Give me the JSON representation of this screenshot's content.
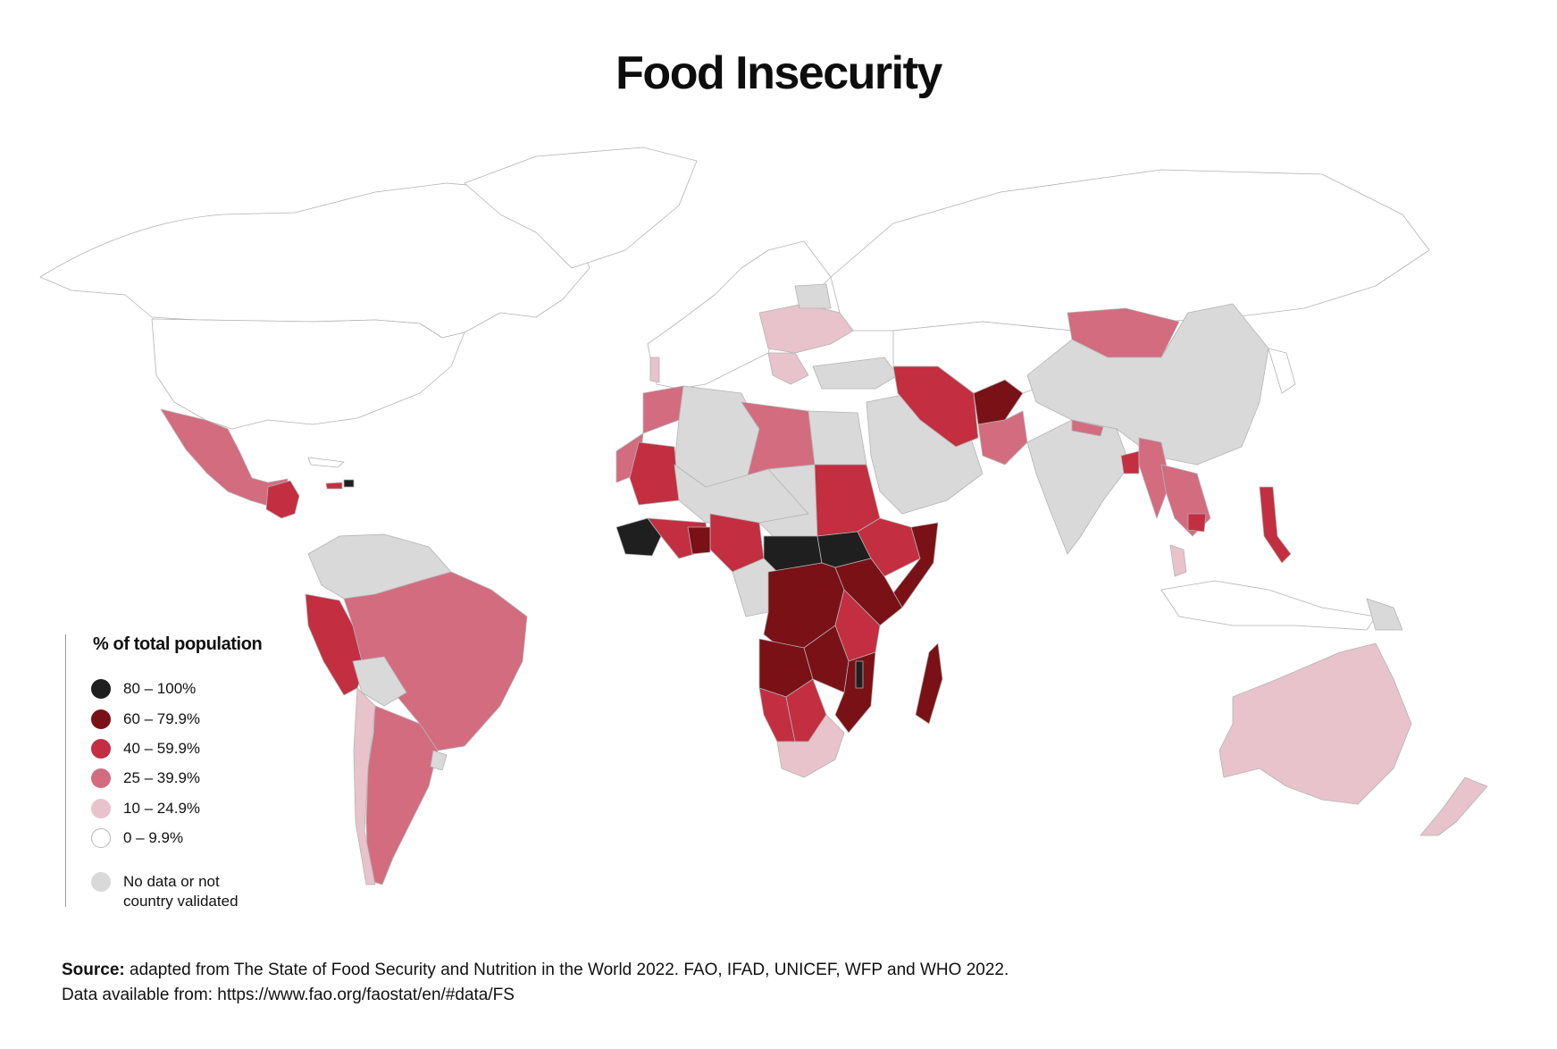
{
  "title": "Food Insecurity",
  "legend": {
    "title": "% of total population",
    "items": [
      {
        "label": "80 – 100%",
        "color": "#1f1f1f"
      },
      {
        "label": "60 – 79.9%",
        "color": "#7a1116"
      },
      {
        "label": "40 – 59.9%",
        "color": "#c32e41"
      },
      {
        "label": "25 – 39.9%",
        "color": "#d36c7f"
      },
      {
        "label": "10 – 24.9%",
        "color": "#e8c3cc"
      },
      {
        "label": "0 – 9.9%",
        "color": "#ffffff"
      }
    ],
    "no_data": {
      "label_line1": "No data or not",
      "label_line2": "country validated",
      "color": "#d9d9d9"
    }
  },
  "source": {
    "bold": "Source:",
    "text": " adapted from The State of Food Security and Nutrition in the World 2022. FAO, IFAD, UNICEF, WFP and WHO 2022.",
    "line2": "Data available from: https://www.fao.org/faostat/en/#data/FS"
  },
  "colors": {
    "c80": "#1f1f1f",
    "c60": "#7a1116",
    "c40": "#c32e41",
    "c25": "#d36c7f",
    "c10": "#e8c3cc",
    "c0": "#ffffff",
    "nodata": "#d9d9d9",
    "border": "#a8a8a8"
  }
}
